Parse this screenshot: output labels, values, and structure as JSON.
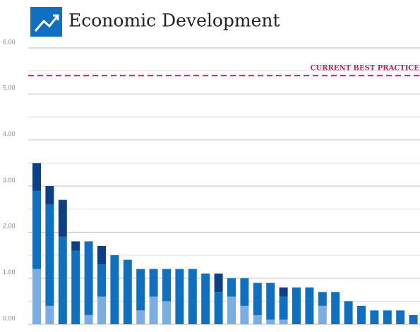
{
  "chart_data": {
    "type": "stacked_bar",
    "title": "Economic Development",
    "categories": [
      null,
      null,
      null,
      null,
      null,
      null,
      null,
      null,
      null,
      null,
      null,
      null,
      null,
      null,
      null,
      null,
      null,
      null,
      null,
      null,
      null,
      null,
      null,
      null,
      null,
      null,
      null,
      null,
      null,
      null
    ],
    "series": [
      {
        "color": "#7aaee2",
        "values": [
          1.2,
          0.4,
          0,
          0,
          0.2,
          0.6,
          0,
          0,
          0.3,
          0.6,
          0.5,
          0,
          0,
          0,
          0,
          0.6,
          0.4,
          0.2,
          0.1,
          0.1,
          0,
          0,
          0.4,
          0,
          0,
          0,
          0,
          0,
          0,
          0
        ]
      },
      {
        "color": "#0f6fc1",
        "values": [
          1.7,
          2.2,
          1.9,
          1.6,
          1.6,
          0.7,
          1.5,
          1.4,
          0.9,
          0.6,
          0.7,
          1.2,
          1.2,
          1.1,
          0.7,
          0.4,
          0.6,
          0.7,
          0.8,
          0.5,
          0.8,
          0.8,
          0.3,
          0.7,
          0.5,
          0.4,
          0.3,
          0.3,
          0.3,
          0.2
        ]
      },
      {
        "color": "#0b3f86",
        "values": [
          0.6,
          0.4,
          0.8,
          0.2,
          0,
          0.4,
          0,
          0,
          0,
          0,
          0,
          0,
          0,
          0,
          0.4,
          0,
          0,
          0,
          0,
          0.2,
          0,
          0,
          0,
          0,
          0,
          0,
          0,
          0,
          0,
          0
        ]
      }
    ],
    "ylim": [
      0,
      6
    ],
    "yticks": [
      {
        "value": 0,
        "label": "0.00"
      },
      {
        "value": 1,
        "label": "1.00"
      },
      {
        "value": 2,
        "label": "2.00"
      },
      {
        "value": 3,
        "label": "3.00"
      },
      {
        "value": 4,
        "label": "4.00"
      },
      {
        "value": 5,
        "label": "5.00"
      },
      {
        "value": 6,
        "label": "6.00"
      }
    ],
    "minor_grid": [
      0.5,
      1.5,
      2.5,
      3.5,
      4.5,
      5.5
    ],
    "grid": true,
    "reference_line": {
      "value": 5.4,
      "label": "CURRENT BEST PRACTICE",
      "color": "#d81b5e"
    }
  }
}
